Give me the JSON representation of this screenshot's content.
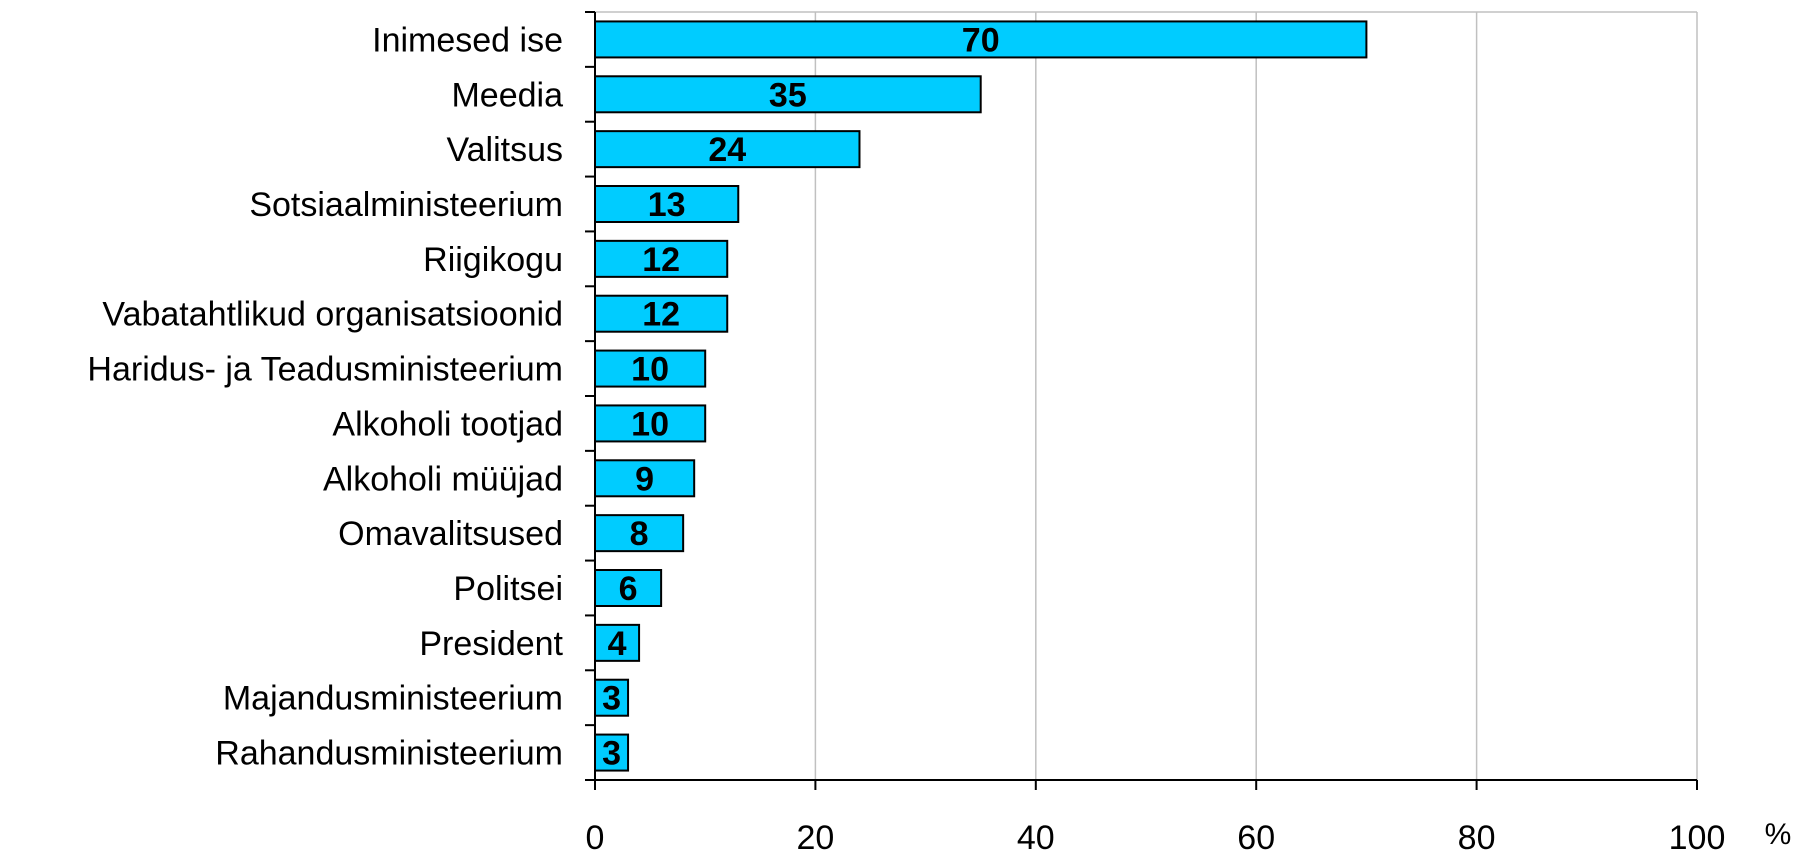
{
  "chart_data": {
    "type": "bar",
    "orientation": "horizontal",
    "categories": [
      "Inimesed ise",
      "Meedia",
      "Valitsus",
      "Sotsiaalministeerium",
      "Riigikogu",
      "Vabatahtlikud organisatsioonid",
      "Haridus- ja Teadusministeerium",
      "Alkoholi tootjad",
      "Alkoholi müüjad",
      "Omavalitsused",
      "Politsei",
      "President",
      "Majandusministeerium",
      "Rahandusministeerium"
    ],
    "values": [
      70,
      35,
      24,
      13,
      12,
      12,
      10,
      10,
      9,
      8,
      6,
      4,
      3,
      3
    ],
    "data_labels": [
      "70",
      "35",
      "24",
      "13",
      "12",
      "12",
      "10",
      "10",
      "9",
      "8",
      "6",
      "4",
      "3",
      "3"
    ],
    "x_ticks": [
      0,
      20,
      40,
      60,
      80,
      100
    ],
    "x_tick_labels": [
      "0",
      "20",
      "40",
      "60",
      "80",
      "100"
    ],
    "xlim": [
      0,
      100
    ],
    "x_unit": "%",
    "title": "",
    "xlabel": "",
    "ylabel": "",
    "grid": "vertical",
    "legend": "none",
    "colors": {
      "bar_fill": "#00CCFF",
      "bar_stroke": "#000000",
      "grid": "#C0C0C0",
      "axis": "#000000",
      "text": "#000000"
    }
  }
}
